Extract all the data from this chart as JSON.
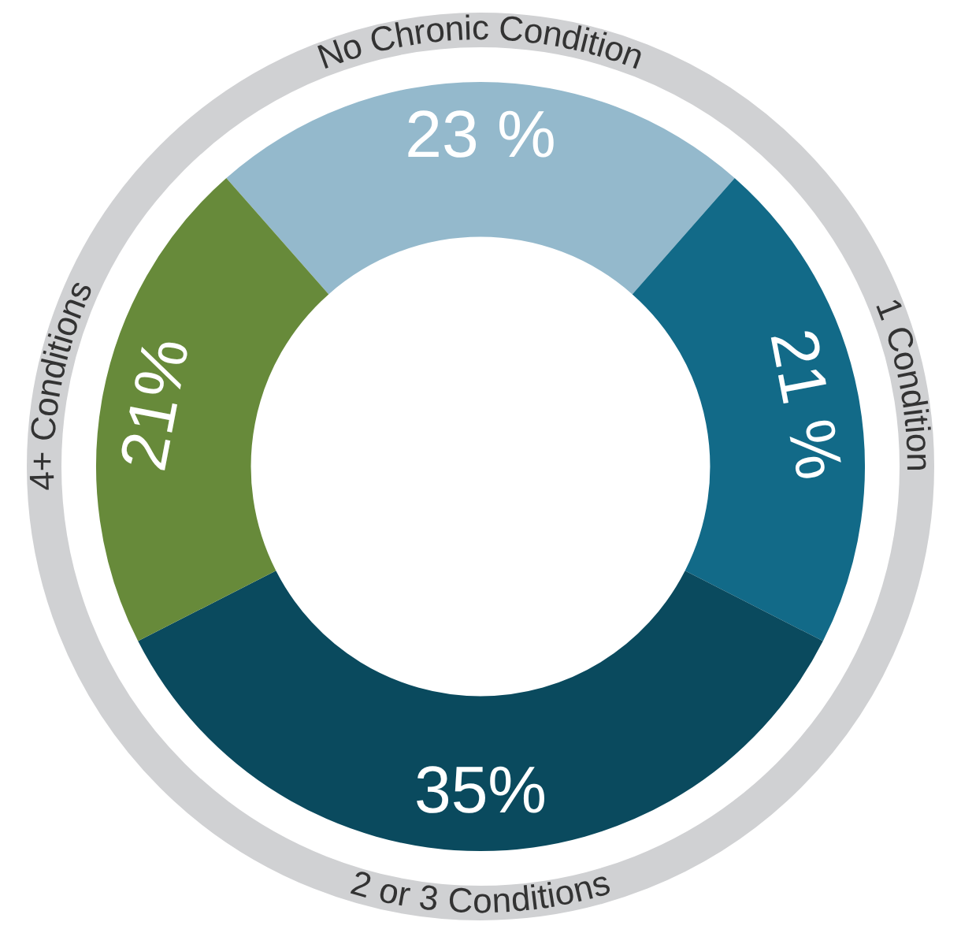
{
  "chart_data": {
    "type": "donut",
    "categories": [
      "No Chronic Condition",
      "1 Condition",
      "2 or 3 Conditions",
      "4+ Conditions"
    ],
    "values": [
      23,
      21,
      35,
      21
    ],
    "colors": [
      "#94b9cc",
      "#126a88",
      "#0a4a5e",
      "#678a3a"
    ],
    "value_labels": [
      "23 %",
      "21 %",
      "35%",
      "21%"
    ],
    "legend": false
  }
}
